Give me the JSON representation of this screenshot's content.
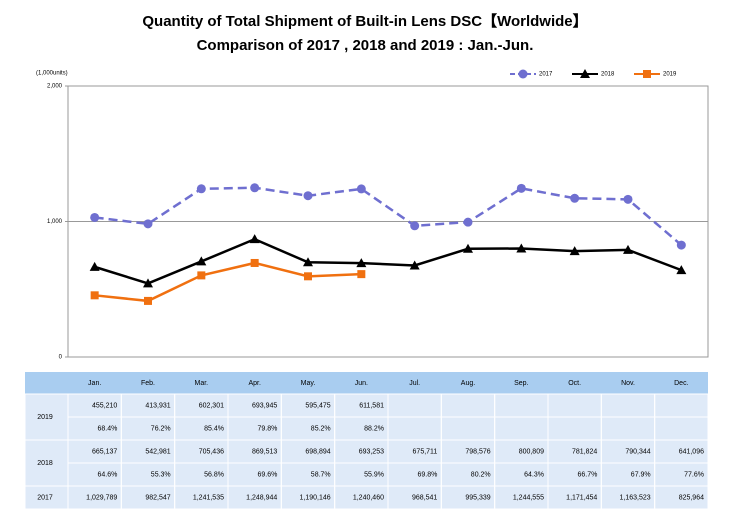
{
  "chart_data": {
    "type": "line",
    "title": "Quantity of Total Shipment of Built-in Lens DSC【Worldwide】",
    "subtitle": "Comparison of 2017 , 2018 and 2019 : Jan.-Jun.",
    "y_axis_label": "(1,000units)",
    "categories": [
      "Jan.",
      "Feb.",
      "Mar.",
      "Apr.",
      "May.",
      "Jun.",
      "Jul.",
      "Aug.",
      "Sep.",
      "Oct.",
      "Nov.",
      "Dec."
    ],
    "ylim": [
      0,
      2000
    ],
    "yticks": [
      0,
      {
        "value": 1000,
        "label": "1,000"
      },
      {
        "value": 2000,
        "label": "2,000"
      }
    ],
    "grid": true,
    "legend": "top-right",
    "series": [
      {
        "name": "2017",
        "color": "#6f6fd0",
        "dashed": true,
        "marker": "circle",
        "values": [
          1029.789,
          982.547,
          1241.535,
          1248.944,
          1190.146,
          1240.46,
          968.541,
          995.339,
          1244.555,
          1171.454,
          1163.523,
          825.964
        ],
        "value_labels": [
          "1,029,789",
          "982,547",
          "1,241,535",
          "1,248,944",
          "1,190,146",
          "1,240,460",
          "968,541",
          "995,339",
          "1,244,555",
          "1,171,454",
          "1,163,523",
          "825,964"
        ]
      },
      {
        "name": "2018",
        "color": "#000000",
        "dashed": false,
        "marker": "triangle",
        "values": [
          665.137,
          542.981,
          705.436,
          869.513,
          698.894,
          693.253,
          675.711,
          798.576,
          800.809,
          781.824,
          790.344,
          641.096
        ],
        "value_labels": [
          "665,137",
          "542,981",
          "705,436",
          "869,513",
          "698,894",
          "693,253",
          "675,711",
          "798,576",
          "800,809",
          "781,824",
          "790,344",
          "641,096"
        ],
        "ratio_labels": [
          "64.6%",
          "55.3%",
          "56.8%",
          "69.6%",
          "58.7%",
          "55.9%",
          "69.8%",
          "80.2%",
          "64.3%",
          "66.7%",
          "67.9%",
          "77.6%"
        ]
      },
      {
        "name": "2019",
        "color": "#f07010",
        "dashed": false,
        "marker": "square",
        "values": [
          455.21,
          413.931,
          602.301,
          693.945,
          595.475,
          611.581,
          null,
          null,
          null,
          null,
          null,
          null
        ],
        "value_labels": [
          "455,210",
          "413,931",
          "602,301",
          "693,945",
          "595,475",
          "611,581",
          null,
          null,
          null,
          null,
          null,
          null
        ],
        "ratio_labels": [
          "68.4%",
          "76.2%",
          "85.4%",
          "79.8%",
          "85.2%",
          "88.2%",
          null,
          null,
          null,
          null,
          null,
          null
        ]
      }
    ]
  }
}
